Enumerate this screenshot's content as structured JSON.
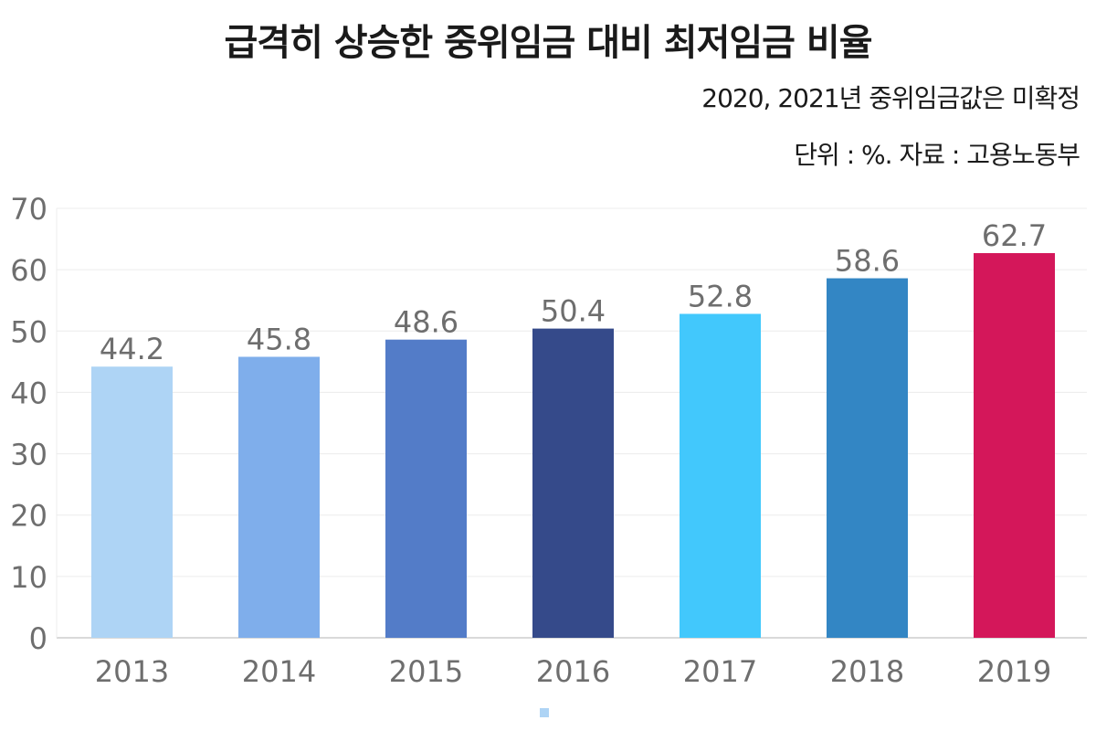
{
  "chart_data": {
    "type": "bar",
    "title": "급격히 상승한 중위임금 대비 최저임금 비율",
    "subtitle": "2020, 2021년 중위임금값은 미확정",
    "note": "단위 : %. 자료 : 고용노동부",
    "xlabel": "",
    "ylabel": "",
    "categories": [
      "2013",
      "2014",
      "2015",
      "2016",
      "2017",
      "2018",
      "2019"
    ],
    "values": [
      44.2,
      45.8,
      48.6,
      50.4,
      52.8,
      58.6,
      62.7
    ],
    "data_labels": [
      "44.2",
      "45.8",
      "48.6",
      "50.4",
      "52.8",
      "58.6",
      "62.7"
    ],
    "colors": [
      "#aed4f5",
      "#7faeeb",
      "#537cc8",
      "#354a8a",
      "#42c8fc",
      "#3386c4",
      "#d4175a"
    ],
    "ylim": [
      0,
      70
    ],
    "yticks": [
      "0",
      "10",
      "20",
      "30",
      "40",
      "50",
      "60",
      "70"
    ],
    "grid": true,
    "legend": "bottom",
    "legend_color": "#aed4f5"
  }
}
